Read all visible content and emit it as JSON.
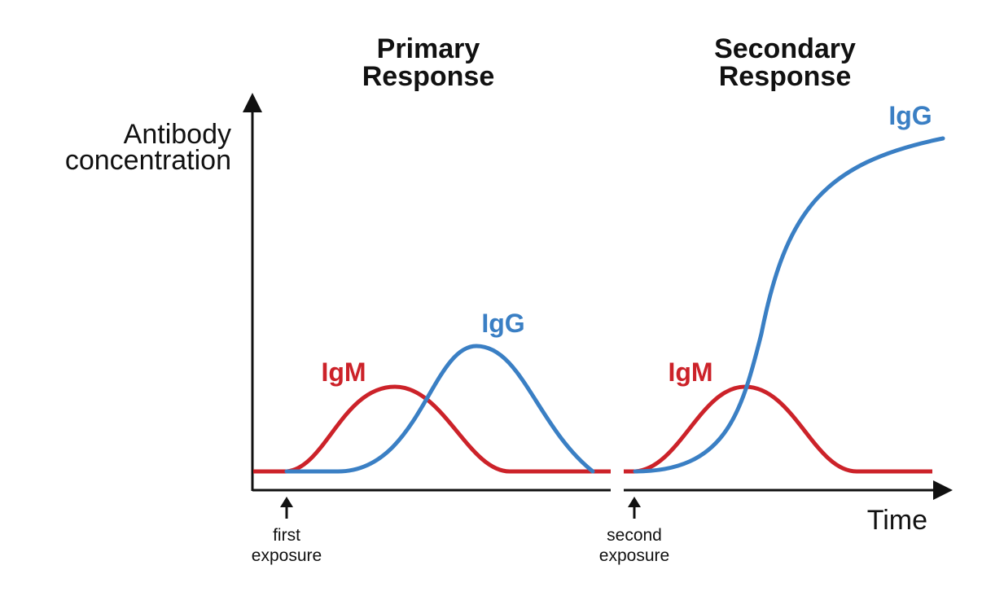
{
  "colors": {
    "igm": "#cc2229",
    "igg": "#3a7fc4",
    "axis": "#111111"
  },
  "titles": {
    "primary_line1": "Primary",
    "primary_line2": "Response",
    "secondary_line1": "Secondary",
    "secondary_line2": "Response"
  },
  "axes": {
    "y_label_line1": "Antibody",
    "y_label_line2": "concentration",
    "x_label": "Time"
  },
  "exposures": {
    "first_line1": "first",
    "first_line2": "exposure",
    "second_line1": "second",
    "second_line2": "exposure"
  },
  "curve_labels": {
    "primary_igm": "IgM",
    "primary_igg": "IgG",
    "secondary_igm": "IgM",
    "secondary_igg": "IgG"
  }
}
